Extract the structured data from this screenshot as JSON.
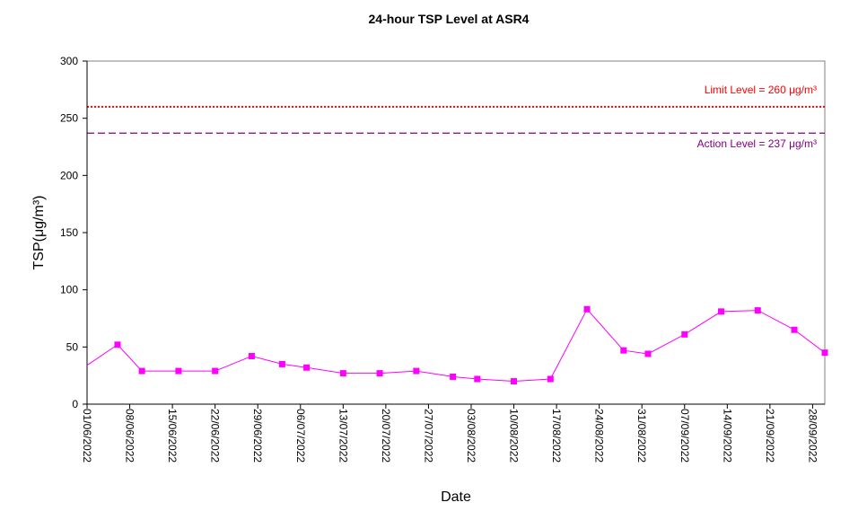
{
  "chart_data": {
    "type": "line",
    "title": "24-hour TSP Level at ASR4",
    "xlabel": "Date",
    "ylabel": "TSP(μg/m³)",
    "ylim": [
      0,
      300
    ],
    "yticks": [
      "0",
      "50",
      "100",
      "150",
      "200",
      "250",
      "300"
    ],
    "xlim": [
      "2022-06-01",
      "2022-09-30"
    ],
    "xtick_labels": [
      "01/06/2022",
      "08/06/2022",
      "15/06/2022",
      "22/06/2022",
      "29/06/2022",
      "06/07/2022",
      "13/07/2022",
      "20/07/2022",
      "27/07/2022",
      "03/08/2022",
      "10/08/2022",
      "17/08/2022",
      "24/08/2022",
      "31/08/2022",
      "07/09/2022",
      "14/09/2022",
      "21/09/2022",
      "28/09/2022"
    ],
    "grid": false,
    "series": [
      {
        "x": [
          "2022-06-06",
          "2022-06-10",
          "2022-06-16",
          "2022-06-22",
          "2022-06-28",
          "2022-07-03",
          "2022-07-07",
          "2022-07-13",
          "2022-07-19",
          "2022-07-25",
          "2022-07-31",
          "2022-08-04",
          "2022-08-10",
          "2022-08-16",
          "2022-08-22",
          "2022-08-28",
          "2022-09-01",
          "2022-09-07",
          "2022-09-13",
          "2022-09-19",
          "2022-09-25",
          "2022-09-30"
        ],
        "values": [
          52,
          29,
          29,
          29,
          42,
          35,
          32,
          27,
          27,
          29,
          24,
          22,
          20,
          22,
          83,
          47,
          44,
          61,
          81,
          82,
          65,
          45
        ],
        "line_start_value": 34,
        "color": "#ff00ff",
        "marker": "square"
      }
    ],
    "reference_lines": [
      {
        "value": 260,
        "label": "Limit Level  = 260 μg/m³",
        "color": "#ff0000",
        "style": "dotted"
      },
      {
        "value": 237,
        "label": "Action Level  = 237 μg/m³",
        "color": "#800080",
        "style": "dashed"
      }
    ]
  }
}
